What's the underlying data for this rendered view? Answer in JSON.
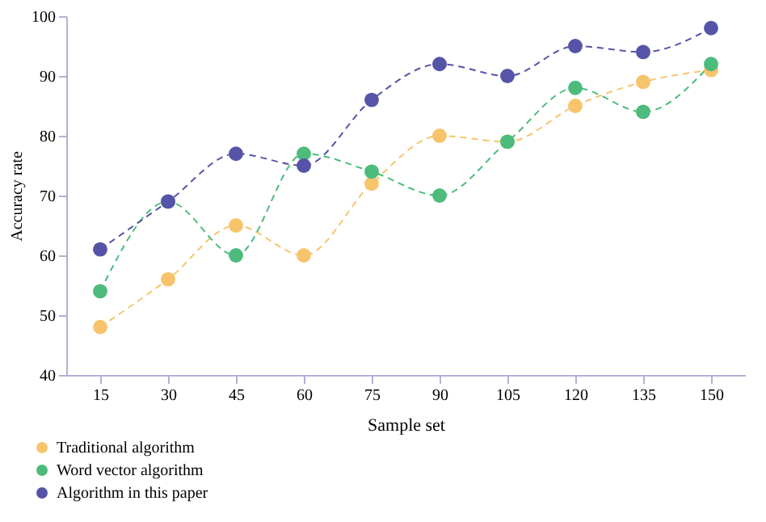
{
  "chart_data": {
    "type": "line",
    "xlabel": "Sample set",
    "ylabel": "Accuracy rate",
    "categories": [
      "15",
      "30",
      "45",
      "60",
      "75",
      "90",
      "105",
      "120",
      "135",
      "150"
    ],
    "series": [
      {
        "name": "Traditional algorithm",
        "color": "#f7c46c",
        "values": [
          48,
          56,
          65,
          60,
          72,
          80,
          79,
          85,
          89,
          91
        ]
      },
      {
        "name": "Word vector algorithm",
        "color": "#4cbb7c",
        "values": [
          54,
          69,
          60,
          77,
          74,
          70,
          79,
          88,
          84,
          92
        ]
      },
      {
        "name": "Algorithm in this paper",
        "color": "#5654a8",
        "values": [
          61,
          69,
          77,
          75,
          86,
          92,
          90,
          95,
          94,
          98
        ]
      }
    ],
    "ylim": [
      40,
      100
    ],
    "yticks": [
      40,
      50,
      60,
      70,
      80,
      90,
      100
    ],
    "grid": false,
    "legend": "bottom left",
    "marker": "circle",
    "line_style": "dashed"
  }
}
